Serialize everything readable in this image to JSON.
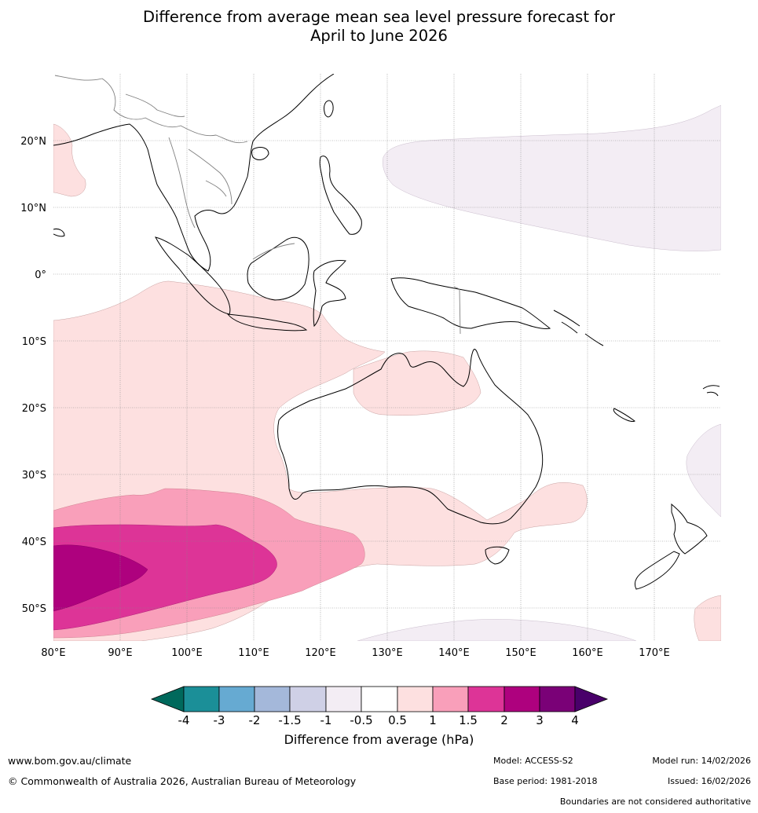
{
  "title": {
    "line1": "Difference from average mean sea level pressure forecast for",
    "line2": "April to June 2026"
  },
  "map": {
    "lat_labels": [
      "20°N",
      "10°N",
      "0°",
      "10°S",
      "20°S",
      "30°S",
      "40°S",
      "50°S"
    ],
    "lon_labels": [
      "80°E",
      "90°E",
      "100°E",
      "110°E",
      "120°E",
      "130°E",
      "140°E",
      "150°E",
      "160°E",
      "170°E"
    ]
  },
  "colorbar": {
    "title": "Difference from average (hPa)",
    "tick_labels": [
      "-4",
      "-3",
      "-2",
      "-1.5",
      "-1",
      "-0.5",
      "0.5",
      "1",
      "1.5",
      "2",
      "3",
      "4"
    ],
    "colors": {
      "below_-4": "#00695c",
      "-4_-3": "#1b8f98",
      "-3_-2": "#66aad2",
      "-2_-1.5": "#a4b8da",
      "-1.5_-1": "#cfd0e6",
      "-1_-0.5": "#f3edf4",
      "-0.5_0.5": "#ffffff",
      "0.5_1": "#fde0e0",
      "1_1.5": "#f99fba",
      "1.5_2": "#dd3497",
      "2_3": "#ae017e",
      "3_4": "#7a0177",
      "above_4": "#49006a"
    }
  },
  "footer": {
    "website": "www.bom.gov.au/climate",
    "copyright": "© Commonwealth of Australia 2026, Australian Bureau of Meteorology",
    "model": "Model: ACCESS-S2",
    "base_period": "Base period: 1981-2018",
    "model_run": "Model run: 14/02/2026",
    "issued": "Issued: 16/02/2026",
    "disclaimer": "Boundaries are not considered authoritative"
  }
}
